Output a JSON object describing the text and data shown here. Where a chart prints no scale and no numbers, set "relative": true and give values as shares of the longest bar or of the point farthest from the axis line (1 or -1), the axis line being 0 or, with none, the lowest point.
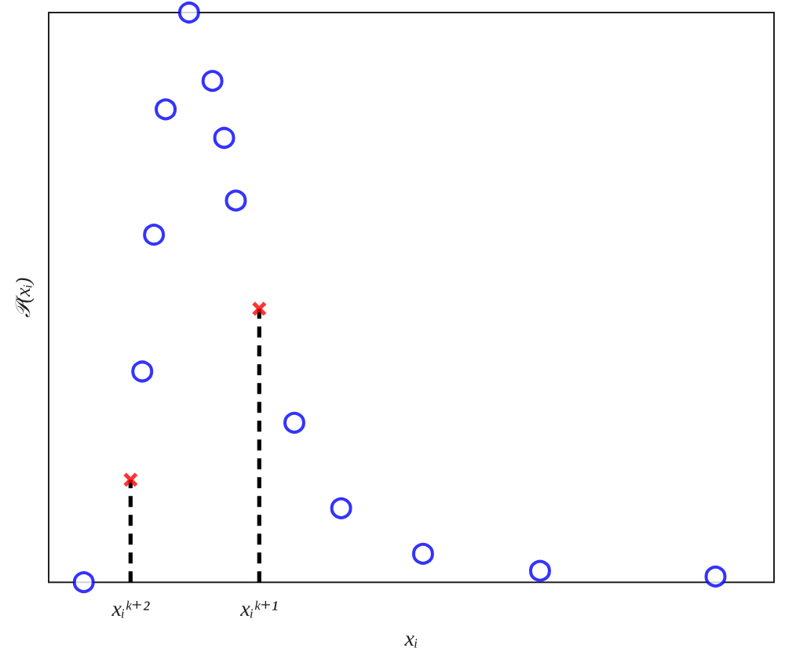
{
  "chart_data": {
    "type": "scatter",
    "relative": true,
    "xlabel": "xᵢ",
    "ylabel": "𝒫(xᵢ)",
    "tick_labels": "x",
    "categories": [
      null,
      null,
      null,
      null,
      null,
      null,
      null,
      "xᵢᵏ⁺²",
      null,
      null,
      null,
      null,
      null,
      null,
      null,
      null,
      null,
      null,
      "xᵢᵏ⁺¹",
      null,
      null,
      null,
      null,
      null,
      null,
      null,
      null,
      null,
      null,
      null,
      null,
      null,
      null,
      null,
      null,
      null,
      null,
      null,
      null,
      null,
      null,
      null,
      null,
      null,
      null,
      null,
      null,
      null,
      null,
      null,
      null,
      null,
      null,
      null,
      null,
      null,
      null,
      null,
      null,
      null,
      null,
      null,
      null
    ],
    "series": [
      {
        "marker": "circle",
        "color": "#0000ff",
        "values": [
          null,
          null,
          null,
          0,
          null,
          null,
          null,
          null,
          0.37,
          0.61,
          0.83,
          null,
          1,
          null,
          0.88,
          0.78,
          0.67,
          null,
          null,
          null,
          null,
          0.28,
          null,
          null,
          null,
          0.13,
          null,
          null,
          null,
          null,
          null,
          null,
          0.05,
          null,
          null,
          null,
          null,
          null,
          null,
          null,
          null,
          null,
          0.02,
          null,
          null,
          null,
          null,
          null,
          null,
          null,
          null,
          null,
          null,
          null,
          null,
          null,
          null,
          0.01,
          null,
          null,
          null,
          null,
          null
        ]
      },
      {
        "type": "lollipop",
        "marker": "cross",
        "line_style": "dashed",
        "color": "#ff0000",
        "values": [
          null,
          null,
          null,
          null,
          null,
          null,
          null,
          0.18,
          null,
          null,
          null,
          null,
          null,
          null,
          null,
          null,
          null,
          null,
          0.48,
          null,
          null,
          null,
          null,
          null,
          null,
          null,
          null,
          null,
          null,
          null,
          null,
          null,
          null,
          null,
          null,
          null,
          null,
          null,
          null,
          null,
          null,
          null,
          null,
          null,
          null,
          null,
          null,
          null,
          null,
          null,
          null,
          null,
          null,
          null,
          null,
          null,
          null,
          null,
          null,
          null,
          null,
          null,
          null
        ]
      }
    ]
  }
}
